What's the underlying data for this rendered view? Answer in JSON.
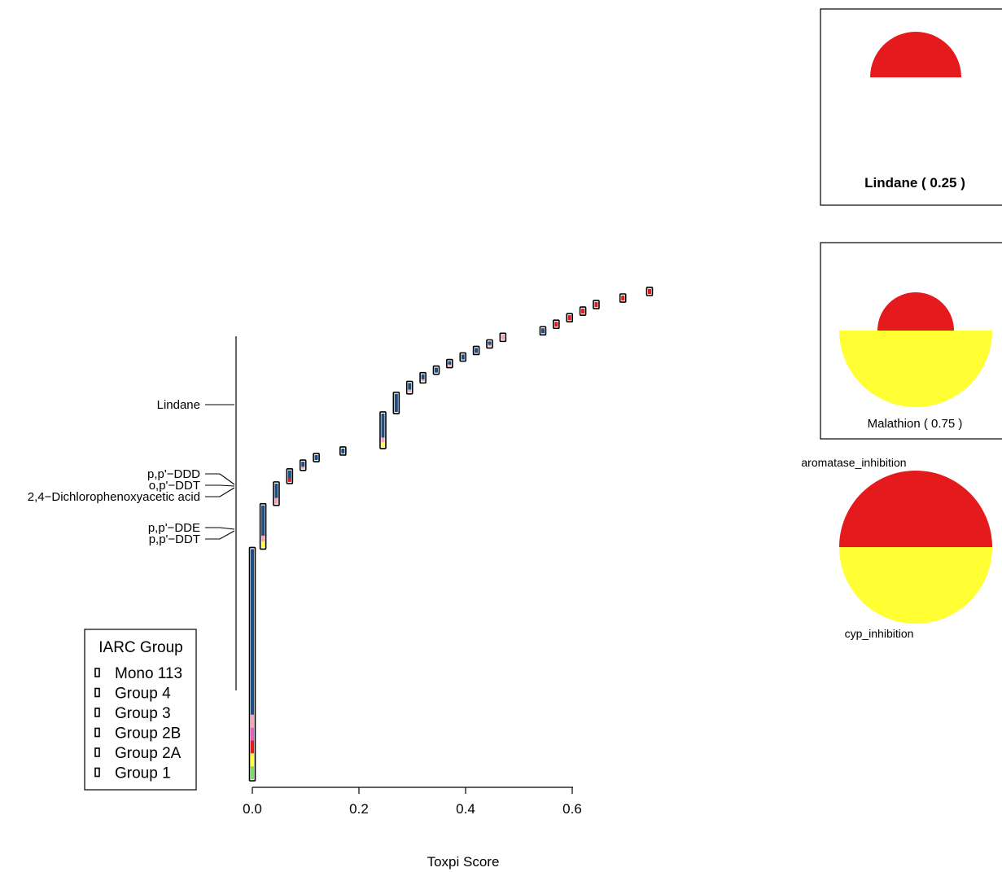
{
  "chart_data": [
    {
      "type": "scatter",
      "xlabel": "Toxpi Score",
      "x_ticks": [
        "0.0",
        "0.2",
        "0.4",
        "0.6"
      ],
      "xlim": [
        -0.01,
        0.74
      ],
      "grid": false,
      "series_colors": {
        "navy": "#1f4e82",
        "pink": "#f4a6b4",
        "red": "#e41a1c",
        "yellow": "#ffff33",
        "magenta": "#e75fc0",
        "green": "#77dd66"
      },
      "groups": [
        {
          "score": 0.0,
          "name": "",
          "colors": [
            "navy",
            "pink",
            "magenta",
            "red",
            "yellow",
            "green"
          ]
        },
        {
          "score": 0.02,
          "name": "",
          "colors": [
            "navy",
            "pink",
            "yellow"
          ]
        },
        {
          "score": 0.045,
          "name": "",
          "colors": [
            "navy",
            "pink"
          ]
        },
        {
          "score": 0.07,
          "name": "",
          "colors": [
            "navy",
            "red"
          ]
        },
        {
          "score": 0.095,
          "name": "",
          "colors": [
            "navy",
            "pink"
          ]
        },
        {
          "score": 0.12,
          "name": "",
          "colors": [
            "navy"
          ]
        },
        {
          "score": 0.17,
          "name": "",
          "colors": [
            "navy"
          ]
        },
        {
          "score": 0.245,
          "name": "",
          "colors": [
            "navy",
            "pink",
            "yellow"
          ]
        },
        {
          "score": 0.27,
          "name": "",
          "colors": [
            "navy"
          ]
        },
        {
          "score": 0.295,
          "name": "",
          "colors": [
            "navy",
            "pink"
          ]
        },
        {
          "score": 0.32,
          "name": "",
          "colors": [
            "navy",
            "pink"
          ]
        },
        {
          "score": 0.345,
          "name": "",
          "colors": [
            "navy"
          ]
        },
        {
          "score": 0.37,
          "name": "",
          "colors": [
            "navy",
            "pink"
          ]
        },
        {
          "score": 0.395,
          "name": "",
          "colors": [
            "navy"
          ]
        },
        {
          "score": 0.42,
          "name": "",
          "colors": [
            "navy"
          ]
        },
        {
          "score": 0.445,
          "name": "",
          "colors": [
            "navy",
            "pink"
          ]
        },
        {
          "score": 0.47,
          "name": "",
          "colors": [
            "pink"
          ]
        },
        {
          "score": 0.545,
          "name": "",
          "colors": [
            "navy"
          ]
        },
        {
          "score": 0.57,
          "name": "",
          "colors": [
            "red"
          ]
        },
        {
          "score": 0.595,
          "name": "",
          "colors": [
            "red"
          ]
        },
        {
          "score": 0.62,
          "name": "",
          "colors": [
            "red"
          ]
        },
        {
          "score": 0.645,
          "name": "",
          "colors": [
            "red"
          ]
        },
        {
          "score": 0.695,
          "name": "",
          "colors": [
            "red"
          ]
        },
        {
          "score": 0.745,
          "name": "",
          "colors": [
            "red"
          ]
        }
      ],
      "stacks": [
        {
          "score": 0.0,
          "n_points": 106
        },
        {
          "score": 0.02,
          "n_points": 20
        },
        {
          "score": 0.045,
          "n_points": 10
        },
        {
          "score": 0.07,
          "n_points": 6
        },
        {
          "score": 0.095,
          "n_points": 4
        },
        {
          "score": 0.12,
          "n_points": 3
        },
        {
          "score": 0.17,
          "n_points": 3
        },
        {
          "score": 0.245,
          "n_points": 16
        },
        {
          "score": 0.27,
          "n_points": 9
        },
        {
          "score": 0.295,
          "n_points": 5
        },
        {
          "score": 0.32,
          "n_points": 4
        },
        {
          "score": 0.345,
          "n_points": 3
        },
        {
          "score": 0.37,
          "n_points": 3
        },
        {
          "score": 0.395,
          "n_points": 3
        },
        {
          "score": 0.42,
          "n_points": 3
        },
        {
          "score": 0.445,
          "n_points": 3
        },
        {
          "score": 0.47,
          "n_points": 3
        },
        {
          "score": 0.545,
          "n_points": 3
        },
        {
          "score": 0.57,
          "n_points": 3
        },
        {
          "score": 0.595,
          "n_points": 3
        },
        {
          "score": 0.62,
          "n_points": 3
        },
        {
          "score": 0.645,
          "n_points": 3
        },
        {
          "score": 0.695,
          "n_points": 3
        },
        {
          "score": 0.745,
          "n_points": 3
        }
      ],
      "annotations": [
        {
          "label": "Lindane",
          "score": 0.245
        },
        {
          "label": "p,p'−DDD",
          "score": 0.02
        },
        {
          "label": "o,p'−DDT",
          "score": 0.02
        },
        {
          "label": "2,4−Dichlorophenoxyacetic acid",
          "score": 0.02
        },
        {
          "label": "p,p'−DDE",
          "score": 0.0
        },
        {
          "label": "p,p'−DDT",
          "score": 0.0
        }
      ],
      "legend": {
        "title": "IARC Group",
        "placement": "bottom-left",
        "entries": [
          "Mono 113",
          "Group 4",
          "Group 3",
          "Group 2B",
          "Group 2A",
          "Group 1"
        ]
      }
    },
    {
      "type": "pie",
      "title": "Lindane  ( 0.25 )",
      "score": 0.25,
      "slices": [
        {
          "name": "aromatase_inhibition",
          "score": 1.0,
          "color": "#e41a1c"
        },
        {
          "name": "cyp_inhibition",
          "score": 0.0,
          "color": "#ffff33"
        }
      ]
    },
    {
      "type": "pie",
      "title": "Malathion  ( 0.75 )",
      "score": 0.75,
      "slices": [
        {
          "name": "aromatase_inhibition",
          "score": 0.5,
          "color": "#e41a1c"
        },
        {
          "name": "cyp_inhibition",
          "score": 1.0,
          "color": "#ffff33"
        }
      ]
    },
    {
      "type": "pie",
      "title": "",
      "slices": [
        {
          "name": "aromatase_inhibition",
          "score": 1.0,
          "color": "#e41a1c"
        },
        {
          "name": "cyp_inhibition",
          "score": 1.0,
          "color": "#ffff33"
        }
      ]
    }
  ]
}
